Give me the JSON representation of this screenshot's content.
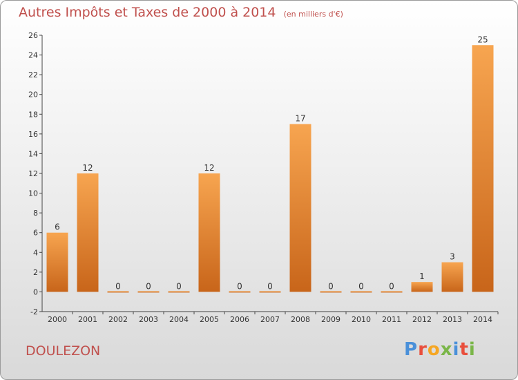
{
  "title": "Autres Impôts et Taxes de 2000 à 2014",
  "subtitle": "(en milliers d'€)",
  "commune": "DOULEZON",
  "logo": {
    "letters": [
      "P",
      "r",
      "o",
      "x",
      "i",
      "t",
      "i"
    ],
    "colors": [
      "#4a90d9",
      "#e94e3c",
      "#f5a623",
      "#7ab648",
      "#4a90d9",
      "#e94e3c",
      "#7ab648"
    ]
  },
  "colors": {
    "bar_light": "#f7a550",
    "bar_dark": "#c8651a",
    "title": "#c0504d"
  },
  "chart_data": {
    "type": "bar",
    "categories": [
      "2000",
      "2001",
      "2002",
      "2003",
      "2004",
      "2005",
      "2006",
      "2007",
      "2008",
      "2009",
      "2010",
      "2011",
      "2012",
      "2013",
      "2014"
    ],
    "values": [
      6,
      12,
      0,
      0,
      0,
      12,
      0,
      0,
      17,
      0,
      0,
      0,
      1,
      3,
      25
    ],
    "data_labels": [
      "6",
      "12",
      "0",
      "0",
      "0",
      "12",
      "0",
      "0",
      "17",
      "0",
      "0",
      "0",
      "1",
      "3",
      "25"
    ],
    "ylim": [
      -2,
      26
    ],
    "yticks": [
      -2,
      0,
      2,
      4,
      6,
      8,
      10,
      12,
      14,
      16,
      18,
      20,
      22,
      24,
      26
    ],
    "grid": false,
    "legend": "none"
  }
}
